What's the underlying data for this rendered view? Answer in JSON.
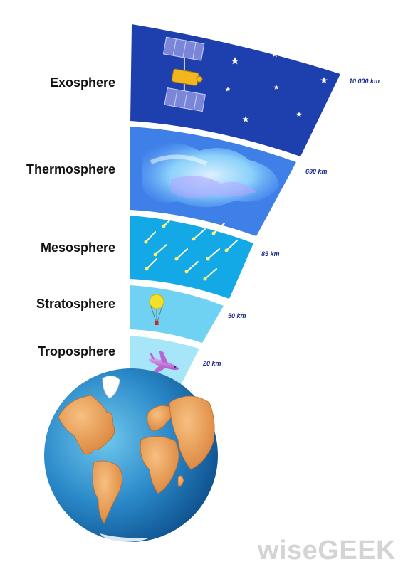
{
  "layers": [
    {
      "name": "Exosphere",
      "altitude": "10 000 km",
      "color": "#1e3fae"
    },
    {
      "name": "Thermosphere",
      "altitude": "690 km",
      "color": "#3f7fe8"
    },
    {
      "name": "Mesosphere",
      "altitude": "85 km",
      "color": "#12a9e6"
    },
    {
      "name": "Stratosphere",
      "altitude": "50 km",
      "color": "#6fd2f3"
    },
    {
      "name": "Troposphere",
      "altitude": "20 km",
      "color": "#a6e6f8"
    }
  ],
  "watermark": "wiseGEEK",
  "icons": [
    "satellite-icon",
    "aurora-icon",
    "meteor-icon",
    "weather-balloon-icon",
    "airplane-icon",
    "earth-globe-icon"
  ]
}
